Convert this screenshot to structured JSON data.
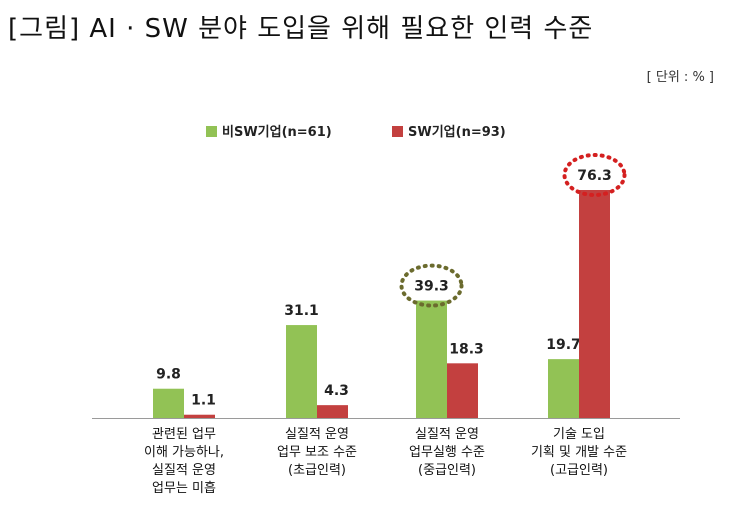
{
  "title": "[그림] AI · SW 분야 도입을 위해 필요한 인력 수준",
  "unit_note": "[ 단위 : % ]",
  "chart_data": {
    "type": "bar",
    "categories": [
      [
        "관련된 업무",
        "이해 가능하나,",
        "실질적 운영",
        "업무는 미흡"
      ],
      [
        "실질적 운영",
        "업무 보조 수준",
        "(초급인력)"
      ],
      [
        "실질적 운영",
        "업무실행 수준",
        "(중급인력)"
      ],
      [
        "기술 도입",
        "기획 및 개발 수준",
        "(고급인력)"
      ]
    ],
    "series": [
      {
        "name": "비SW기업(n=61)",
        "color": "#92c255",
        "values": [
          9.8,
          31.1,
          39.3,
          19.7
        ]
      },
      {
        "name": "SW기업(n=93)",
        "color": "#c3403f",
        "values": [
          1.1,
          4.3,
          18.3,
          76.3
        ]
      }
    ],
    "highlights": [
      {
        "series": 0,
        "index": 2,
        "color": "#6b6b2e"
      },
      {
        "series": 1,
        "index": 3,
        "color": "#d42020"
      }
    ],
    "ylim": [
      0,
      80
    ],
    "legend_position": "top",
    "grid": false
  }
}
